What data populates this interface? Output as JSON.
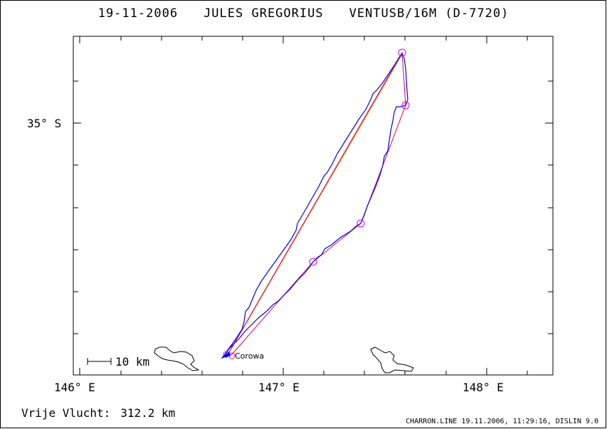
{
  "header": {
    "date": "19-11-2006",
    "pilot": "JULES GREGORIUS",
    "aircraft": "VENTUSB/16M (D-7720)"
  },
  "axes": {
    "lat_label": "35° S",
    "lon_labels": [
      "146° E",
      "147° E",
      "148° E"
    ]
  },
  "scale_bar": {
    "label": "10 km"
  },
  "places": [
    {
      "name": "Corowa"
    }
  ],
  "footer": {
    "distance_label": "Vrije Vlucht:",
    "distance_value": "312.2 km",
    "meta": "CHARRON.LINE 19.11.2006, 11:29:16, DISLIN 9.0"
  },
  "colors": {
    "track": "#0000ee",
    "task_line": "#e00060",
    "straight_line": "#e08a00",
    "turnpoint": "#e000e0",
    "background": "#ffffff",
    "axes": "#000000"
  }
}
